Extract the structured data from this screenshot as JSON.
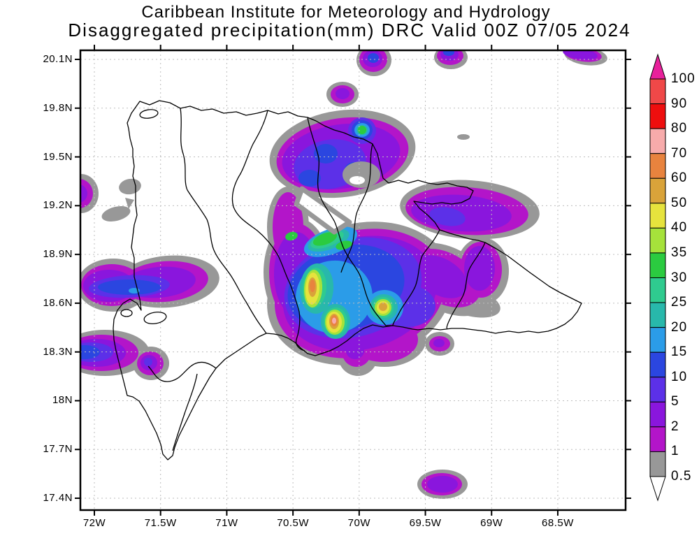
{
  "titles": {
    "line1": "Caribbean Institute for Meteorology and Hydrology",
    "line2": "Disaggregated precipitation(mm) DRC Valid 00Z 07/05 2024"
  },
  "axes": {
    "y_ticks": [
      "20.1N",
      "19.8N",
      "19.5N",
      "19.2N",
      "18.9N",
      "18.6N",
      "18.3N",
      "18N",
      "17.7N",
      "17.4N"
    ],
    "x_ticks": [
      "72W",
      "71.5W",
      "71W",
      "70.5W",
      "70W",
      "69.5W",
      "69W",
      "68.5W"
    ]
  },
  "colorbar": {
    "labels": [
      "100",
      "90",
      "80",
      "70",
      "60",
      "50",
      "40",
      "35",
      "30",
      "25",
      "20",
      "15",
      "10",
      "5",
      "2",
      "1",
      "0.5"
    ],
    "segment_colors_top_to_bottom": [
      "#ef4848",
      "#ee0e0e",
      "#f7abab",
      "#e8833e",
      "#d9a33a",
      "#e6e33d",
      "#a6e23b",
      "#2bcb40",
      "#2fcb8f",
      "#28b8ab",
      "#2b9ce8",
      "#2b46e0",
      "#5c30e8",
      "#8a16dd",
      "#b315c9",
      "#989898"
    ],
    "top_arrow_color": "#e8209b",
    "bottom_arrow_color": "#ffffff"
  },
  "map": {
    "palette": {
      "lt1": "#989898",
      "l1": "#b315c9",
      "l2": "#8a16dd",
      "l5": "#5c30e8",
      "l10": "#2b46e0",
      "l15": "#2b9ce8",
      "l20": "#28b8ab",
      "l25": "#2fcb8f",
      "l30": "#2bcb40",
      "l35": "#a6e23b",
      "l40": "#e6e33d",
      "l50": "#d9a33a",
      "l60": "#e8833e",
      "l70": "#f7abab",
      "l80": "#ee0e0e",
      "l90": "#ef4848",
      "gt100": "#e8209b"
    },
    "grid_color": "#bdbdbd",
    "border_color": "#000000"
  },
  "chart_data": {
    "type": "filled_contour_map",
    "title": "Disaggregated precipitation(mm) DRC Valid 00Z 07/05 2024",
    "source": "Caribbean Institute for Meteorology and Hydrology",
    "variable": "precipitation",
    "units": "mm",
    "valid_time": "00Z 07/05 2024",
    "region": "Dominican Republic / Hispaniola",
    "lon_ticks_deg_w": [
      72,
      71.5,
      71,
      70.5,
      70,
      69.5,
      69,
      68.5
    ],
    "lat_ticks_deg_n": [
      20.1,
      19.8,
      19.5,
      19.2,
      18.9,
      18.6,
      18.3,
      18.0,
      17.7,
      17.4
    ],
    "contour_levels_mm": [
      0.5,
      1,
      2,
      5,
      10,
      15,
      20,
      25,
      30,
      35,
      40,
      50,
      60,
      70,
      80,
      90,
      100
    ],
    "notable_maxima": [
      {
        "near": "70.45W 18.65N",
        "peak_band_mm": "60-70"
      },
      {
        "near": "70.2W 18.5N",
        "peak_band_mm": "70-80"
      },
      {
        "near": "69.85W 18.55N",
        "peak_band_mm": "60-70"
      },
      {
        "near": "70.0W 19.65N",
        "peak_band_mm": "30-35"
      },
      {
        "near": "70.35W 18.85N",
        "peak_band_mm": "30-35"
      },
      {
        "near": "71.6W 18.62N",
        "peak_band_mm": "15-20"
      },
      {
        "near": "72.05W 18.32N",
        "peak_band_mm": "10-15"
      }
    ],
    "legend_position": "right",
    "grid": "dashed lat/lon grid at tick spacing"
  }
}
